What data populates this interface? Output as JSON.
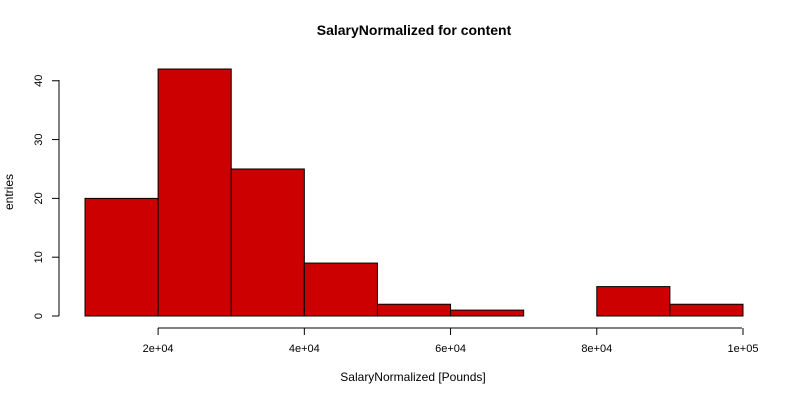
{
  "chart_data": {
    "type": "bar",
    "title": "SalaryNormalized for content",
    "xlabel": "SalaryNormalized [Pounds]",
    "ylabel": "entries",
    "bins": [
      [
        10000,
        20000
      ],
      [
        20000,
        30000
      ],
      [
        30000,
        40000
      ],
      [
        40000,
        50000
      ],
      [
        50000,
        60000
      ],
      [
        60000,
        70000
      ],
      [
        70000,
        80000
      ],
      [
        80000,
        90000
      ],
      [
        90000,
        100000
      ]
    ],
    "values": [
      20,
      42,
      25,
      9,
      2,
      1,
      0,
      5,
      2
    ],
    "xlim": [
      10000,
      100000
    ],
    "ylim": [
      0,
      42
    ],
    "xticks": [
      20000,
      40000,
      60000,
      80000,
      100000
    ],
    "xtick_labels": [
      "2e+04",
      "4e+04",
      "6e+04",
      "8e+04",
      "1e+05"
    ],
    "yticks": [
      0,
      10,
      20,
      30,
      40
    ],
    "ytick_labels": [
      "0",
      "10",
      "20",
      "30",
      "40"
    ],
    "grid": false,
    "colors": {
      "bar_fill": "#cc0000",
      "bar_edge": "#000000",
      "axis": "#000000"
    }
  }
}
